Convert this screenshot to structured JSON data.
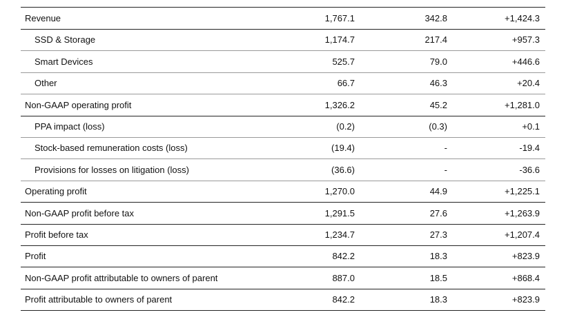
{
  "table": {
    "rows": [
      {
        "label": "Revenue",
        "cells": [
          "1,767.1",
          "342.8",
          "+1,424.3"
        ],
        "children": [
          {
            "label": "SSD & Storage",
            "cells": [
              "1,174.7",
              "217.4",
              "+957.3"
            ]
          },
          {
            "label": "Smart Devices",
            "cells": [
              "525.7",
              "79.0",
              "+446.6"
            ]
          },
          {
            "label": "Other",
            "cells": [
              "66.7",
              "46.3",
              "+20.4"
            ]
          }
        ]
      },
      {
        "label": "Non-GAAP operating profit",
        "cells": [
          "1,326.2",
          "45.2",
          "+1,281.0"
        ],
        "children": [
          {
            "label": "PPA impact (loss)",
            "cells": [
              "(0.2)",
              "(0.3)",
              "+0.1"
            ]
          },
          {
            "label": "Stock-based remuneration costs (loss)",
            "cells": [
              "(19.4)",
              "-",
              "-19.4"
            ]
          },
          {
            "label": "Provisions for losses on litigation (loss)",
            "cells": [
              "(36.6)",
              "-",
              "-36.6"
            ]
          }
        ]
      },
      {
        "label": "Operating profit",
        "cells": [
          "1,270.0",
          "44.9",
          "+1,225.1"
        ]
      },
      {
        "label": "Non-GAAP profit before tax",
        "cells": [
          "1,291.5",
          "27.6",
          "+1,263.9"
        ]
      },
      {
        "label": "Profit before tax",
        "cells": [
          "1,234.7",
          "27.3",
          "+1,207.4"
        ]
      },
      {
        "label": "Profit",
        "cells": [
          "842.2",
          "18.3",
          "+823.9"
        ]
      },
      {
        "label": "Non-GAAP profit attributable to owners of parent",
        "cells": [
          "887.0",
          "18.5",
          "+868.4"
        ]
      },
      {
        "label": "Profit attributable to owners of parent",
        "cells": [
          "842.2",
          "18.3",
          "+823.9"
        ]
      }
    ]
  }
}
